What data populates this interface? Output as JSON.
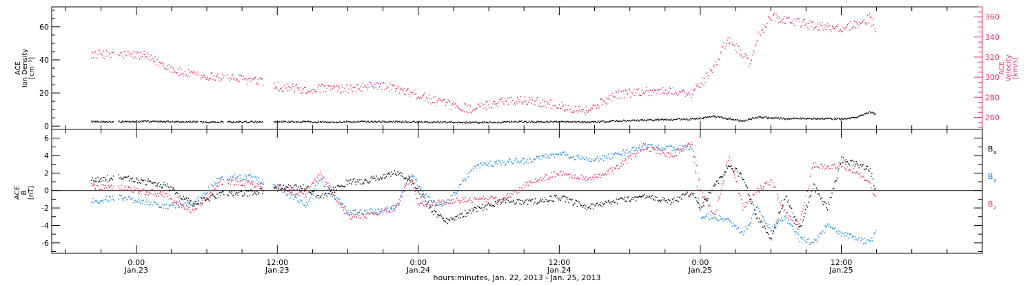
{
  "chart_data": [
    {
      "panel": "top",
      "type": "scatter",
      "ylabel_left": [
        "ACE",
        "Ion Density",
        "[cm⁻³]"
      ],
      "ylabel_right": [
        "ACE",
        "Velocity",
        "[km/s]"
      ],
      "left_axis": {
        "ylim": [
          -2,
          72
        ],
        "ticks": [
          0,
          20,
          40,
          60
        ],
        "tick_labels": [
          "0",
          "20",
          "40",
          "60"
        ]
      },
      "right_axis": {
        "ylim": [
          248,
          370
        ],
        "ticks": [
          260,
          280,
          300,
          320,
          340,
          360
        ],
        "tick_labels": [
          "260",
          "280",
          "300",
          "320",
          "340",
          "360"
        ],
        "color": "#e8336b"
      },
      "series": [
        {
          "axis": "right",
          "color": "#e8336b",
          "x": [
            -0.16,
            0.0,
            0.03,
            0.05,
            0.1,
            0.15,
            0.2,
            0.3,
            0.4,
            0.5,
            0.6,
            0.65,
            0.75,
            0.85,
            0.92,
            0.95,
            1.0,
            1.05,
            1.1,
            1.2,
            1.3,
            1.4,
            1.5,
            1.6,
            1.7,
            1.8,
            1.9,
            1.97,
            2.0,
            2.05,
            2.08,
            2.1,
            2.15,
            2.18,
            2.2,
            2.25,
            2.3,
            2.35,
            2.4,
            2.45,
            2.5,
            2.55,
            2.6,
            2.62
          ],
          "y": [
            323,
            322,
            321,
            318,
            312,
            305,
            302,
            300,
            297,
            291,
            287,
            289,
            288,
            292,
            289,
            285,
            282,
            277,
            273,
            268,
            277,
            277,
            271,
            267,
            283,
            286,
            286,
            284,
            293,
            309,
            330,
            337,
            322,
            312,
            339,
            360,
            357,
            354,
            351,
            350,
            349,
            352,
            359,
            348
          ]
        },
        {
          "axis": "left",
          "color": "#000000",
          "x": [
            -0.16,
            0.0,
            0.1,
            0.3,
            0.5,
            0.65,
            0.75,
            0.92,
            1.0,
            1.2,
            1.4,
            1.6,
            1.7,
            1.8,
            1.97,
            2.05,
            2.15,
            2.2,
            2.3,
            2.4,
            2.5,
            2.55,
            2.6,
            2.62
          ],
          "y": [
            2.5,
            2.8,
            2.6,
            2.4,
            2.6,
            2.5,
            2.5,
            2.7,
            2.5,
            2.2,
            2.6,
            2.4,
            3.0,
            3.6,
            4.2,
            5.8,
            3.0,
            5.5,
            4.4,
            4.6,
            4.2,
            5.2,
            8.5,
            7.2
          ]
        }
      ]
    },
    {
      "panel": "bottom",
      "type": "scatter",
      "ylabel": [
        "ACE",
        "B",
        "[nT]"
      ],
      "ylim": [
        -7.2,
        7.0
      ],
      "ticks": [
        -6,
        -4,
        -2,
        0,
        2,
        4,
        6
      ],
      "tick_labels": [
        "-6",
        "-4",
        "-2",
        "0",
        "2",
        "4",
        "6"
      ],
      "zero_line": true,
      "series": [
        {
          "name": "B",
          "subscript": "x",
          "color": "#000000",
          "x": [
            -0.16,
            -0.05,
            0.1,
            0.2,
            0.3,
            0.4,
            0.5,
            0.6,
            0.65,
            0.75,
            0.8,
            0.92,
            0.97,
            1.0,
            1.05,
            1.1,
            1.2,
            1.3,
            1.4,
            1.5,
            1.6,
            1.7,
            1.8,
            1.9,
            1.97,
            2.0,
            2.1,
            2.15,
            2.2,
            2.25,
            2.3,
            2.35,
            2.4,
            2.45,
            2.5,
            2.55,
            2.6,
            2.62
          ],
          "y": [
            1.2,
            1.5,
            0.6,
            -1.6,
            -0.4,
            -0.3,
            0.3,
            0.4,
            -0.8,
            1.0,
            1.0,
            2.0,
            1.2,
            0.0,
            -2.5,
            -3.5,
            -2.2,
            -1.2,
            -1.3,
            -0.8,
            -2.0,
            -1.2,
            -0.7,
            -1.3,
            -0.2,
            -2.0,
            3.0,
            1.5,
            -3.0,
            -5.5,
            -0.5,
            -4.5,
            0.5,
            -2.0,
            3.5,
            3.0,
            2.5,
            0.0
          ]
        },
        {
          "name": "B",
          "subscript": "y",
          "color": "#1e86e0",
          "x": [
            -0.16,
            -0.05,
            0.1,
            0.2,
            0.3,
            0.4,
            0.5,
            0.6,
            0.65,
            0.75,
            0.8,
            0.92,
            0.97,
            1.0,
            1.05,
            1.1,
            1.2,
            1.3,
            1.4,
            1.5,
            1.6,
            1.7,
            1.8,
            1.9,
            1.97,
            2.0,
            2.05,
            2.1,
            2.15,
            2.2,
            2.25,
            2.3,
            2.35,
            2.4,
            2.45,
            2.5,
            2.55,
            2.6,
            2.62
          ],
          "y": [
            -1.2,
            -0.8,
            -1.8,
            -1.6,
            1.5,
            1.5,
            0.5,
            -1.8,
            1.2,
            -2.5,
            -2.5,
            -2.0,
            2.0,
            0.6,
            -1.5,
            -1.5,
            2.8,
            3.2,
            3.5,
            4.2,
            3.5,
            4.0,
            5.2,
            4.8,
            5.0,
            -3.0,
            -3.0,
            -3.5,
            -5.0,
            -2.0,
            -4.5,
            -3.0,
            -5.5,
            -6.0,
            -4.0,
            -5.0,
            -5.5,
            -6.0,
            -4.5
          ]
        },
        {
          "name": "B",
          "subscript": "z",
          "color": "#e8336b",
          "x": [
            -0.16,
            -0.05,
            0.1,
            0.2,
            0.3,
            0.4,
            0.5,
            0.6,
            0.65,
            0.75,
            0.8,
            0.92,
            0.97,
            1.0,
            1.05,
            1.1,
            1.2,
            1.3,
            1.4,
            1.5,
            1.6,
            1.7,
            1.8,
            1.9,
            1.97,
            2.0,
            2.05,
            2.1,
            2.15,
            2.2,
            2.25,
            2.3,
            2.35,
            2.4,
            2.45,
            2.5,
            2.55,
            2.6,
            2.62
          ],
          "y": [
            0.5,
            0.3,
            -0.5,
            -2.5,
            1.0,
            0.8,
            0.3,
            -0.5,
            2.0,
            -3.0,
            -3.0,
            -2.0,
            1.5,
            -1.5,
            -1.5,
            -1.3,
            -1.0,
            -1.0,
            1.0,
            2.0,
            1.3,
            2.5,
            5.0,
            4.0,
            5.5,
            0.0,
            -3.0,
            4.0,
            -2.0,
            0.0,
            1.0,
            -2.5,
            -4.0,
            3.0,
            2.5,
            3.0,
            2.0,
            1.0,
            -1.0
          ]
        }
      ]
    }
  ],
  "x_axis": {
    "range": [
      -0.3,
      3.0
    ],
    "major_ticks": [
      0,
      0.5,
      1,
      1.5,
      2,
      2.5
    ],
    "minor_ticks": [
      -0.25,
      -0.125,
      0.125,
      0.25,
      0.375,
      0.625,
      0.75,
      0.875,
      1.125,
      1.25,
      1.375,
      1.625,
      1.75,
      1.875,
      2.125,
      2.25,
      2.375,
      2.625,
      2.75,
      2.875
    ],
    "tick_labels_time": [
      "0:00",
      "12:00",
      "0:00",
      "12:00",
      "0:00",
      "12:00"
    ],
    "tick_labels_date": [
      "Jan.23",
      "Jan.23",
      "Jan.24",
      "Jan.24",
      "Jan.25",
      "Jan.25"
    ],
    "xlabel": "hours:minutes, Jan. 22, 2013 - Jan. 25, 2013"
  },
  "labels": {
    "top_left": [
      "ACE",
      "Ion Density",
      "[cm⁻³]"
    ],
    "top_right": [
      "ACE",
      "Velocity",
      "[km/s]"
    ],
    "bottom_left": [
      "ACE",
      "B",
      "[nT]"
    ],
    "bottom_legend": [
      {
        "text": "B",
        "subscript": "x",
        "color": "#000000"
      },
      {
        "text": "B",
        "subscript": "y",
        "color": "#1e86e0"
      },
      {
        "text": "B",
        "subscript": "z",
        "color": "#e8336b"
      }
    ]
  }
}
